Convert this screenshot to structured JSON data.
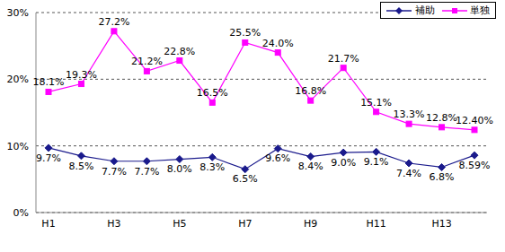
{
  "chart_data": {
    "type": "line",
    "categories": [
      "H1",
      null,
      "H3",
      null,
      "H5",
      null,
      "H7",
      null,
      "H9",
      null,
      "H11",
      null,
      "H13",
      null
    ],
    "series": [
      {
        "name": "補助",
        "color": "#1a1a8c",
        "marker": "diamond",
        "values": [
          9.7,
          8.5,
          7.7,
          7.7,
          8.0,
          8.3,
          6.5,
          9.6,
          8.4,
          9.0,
          9.1,
          7.4,
          6.8,
          8.59
        ],
        "value_labels": [
          "9.7%",
          "8.5%",
          "7.7%",
          "7.7%",
          "8.0%",
          "8.3%",
          "6.5%",
          "9.6%",
          "8.4%",
          "9.0%",
          "9.1%",
          "7.4%",
          "6.8%",
          "8.59%"
        ]
      },
      {
        "name": "単独",
        "color": "#ff00ff",
        "marker": "square",
        "values": [
          18.1,
          19.3,
          27.2,
          21.2,
          22.8,
          16.5,
          25.5,
          24.0,
          16.8,
          21.7,
          15.1,
          13.3,
          12.8,
          12.4
        ],
        "value_labels": [
          "18.1%",
          "19.3%",
          "27.2%",
          "21.2%",
          "22.8%",
          "16.5%",
          "25.5%",
          "24.0%",
          "16.8%",
          "21.7%",
          "15.1%",
          "13.3%",
          "12.8%",
          "12.40%"
        ]
      }
    ],
    "ylim": [
      0,
      30
    ],
    "yticks": [
      {
        "value": 0,
        "label": "0%"
      },
      {
        "value": 10,
        "label": "10%"
      },
      {
        "value": 20,
        "label": "20%"
      },
      {
        "value": 30,
        "label": "30%"
      }
    ],
    "grid": true,
    "legend": "upper right",
    "data_labels": true
  }
}
